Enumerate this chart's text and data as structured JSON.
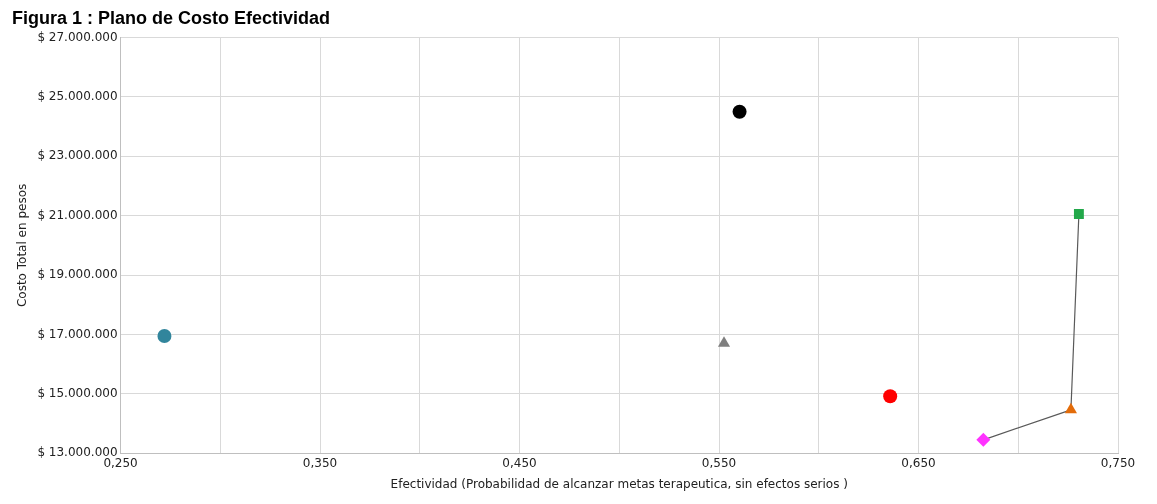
{
  "chart_data": {
    "type": "scatter",
    "title": "Figura 1 : Plano de Costo Efectividad",
    "xlabel": "Efectividad (Probabilidad de alcanzar metas terapeutica, sin efectos serios )",
    "ylabel": "Costo Total en pesos",
    "xlim": [
      0.25,
      0.75
    ],
    "ylim": [
      13000000,
      27000000
    ],
    "xticks": [
      {
        "value": 0.25,
        "label": "0,250"
      },
      {
        "value": 0.3,
        "label": null
      },
      {
        "value": 0.35,
        "label": "0,350"
      },
      {
        "value": 0.4,
        "label": null
      },
      {
        "value": 0.45,
        "label": "0,450"
      },
      {
        "value": 0.5,
        "label": null
      },
      {
        "value": 0.55,
        "label": "0,550"
      },
      {
        "value": 0.6,
        "label": null
      },
      {
        "value": 0.65,
        "label": "0,650"
      },
      {
        "value": 0.7,
        "label": null
      },
      {
        "value": 0.75,
        "label": "0,750"
      }
    ],
    "yticks": [
      {
        "value": 13000000,
        "label": "$ 13.000.000"
      },
      {
        "value": 15000000,
        "label": "$ 15.000.000"
      },
      {
        "value": 17000000,
        "label": "$ 17.000.000"
      },
      {
        "value": 19000000,
        "label": "$ 19.000.000"
      },
      {
        "value": 21000000,
        "label": "$ 21.000.000"
      },
      {
        "value": 23000000,
        "label": "$ 23.000.000"
      },
      {
        "value": 25000000,
        "label": "$ 25.000.000"
      },
      {
        "value": 27000000,
        "label": "$ 27.000.000"
      }
    ],
    "grid": true,
    "series": [
      {
        "type": "line",
        "color": "#595959",
        "marker": "none",
        "line_style": "solid",
        "x": [
          0.6825,
          0.7264,
          0.7304
        ],
        "values": [
          13450000,
          14460000,
          21060000
        ]
      },
      {
        "color": "#31859c",
        "marker": "circle",
        "x": [
          0.272
        ],
        "values": [
          16950000
        ]
      },
      {
        "color": "#7f7f7f",
        "marker": "triangle",
        "x": [
          0.5525
        ],
        "values": [
          16700000
        ]
      },
      {
        "color": "#000000",
        "marker": "circle",
        "x": [
          0.5603
        ],
        "values": [
          24500000
        ]
      },
      {
        "color": "#ff0000",
        "marker": "circle",
        "x": [
          0.6358
        ],
        "values": [
          14920000
        ]
      },
      {
        "color": "#ff33ff",
        "marker": "diamond",
        "x": [
          0.6825
        ],
        "values": [
          13450000
        ]
      },
      {
        "color": "#e36c0a",
        "marker": "triangle",
        "x": [
          0.7264
        ],
        "values": [
          14460000
        ]
      },
      {
        "color": "#22a84a",
        "marker": "square",
        "x": [
          0.7304
        ],
        "values": [
          21060000
        ]
      }
    ]
  }
}
